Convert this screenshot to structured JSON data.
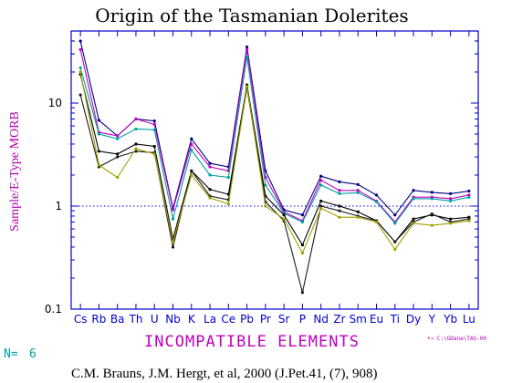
{
  "title": "Origin of the Tasmanian Dolerites",
  "ylabel": "Sample/E-Type MORB",
  "xlabel": "INCOMPATIBLE ELEMENTS",
  "n_label": "N=",
  "n_value": "6",
  "legend_note": "+→ C:\\GDana\\TAS-00",
  "citation": "C.M. Brauns, J.M. Hergt, et al, 2000 (J.Pet.41, (7), 908)",
  "colors": {
    "axis": "#0000cc",
    "title": "#000000",
    "ylabel": "#b000b0",
    "xlabel": "#c000c0",
    "n_label": "#00a0a0",
    "reference_line": "#0000ff"
  },
  "chart_data": {
    "type": "line",
    "yscale": "log",
    "ylim": [
      0.1,
      50
    ],
    "yticks": [
      {
        "value": 0.1,
        "label": "0.1"
      },
      {
        "value": 1,
        "label": "1"
      },
      {
        "value": 10,
        "label": "10"
      }
    ],
    "reference_value": 1,
    "categories": [
      "Cs",
      "Rb",
      "Ba",
      "Th",
      "U",
      "Nb",
      "K",
      "La",
      "Ce",
      "Pb",
      "Pr",
      "Sr",
      "P",
      "Nd",
      "Zr",
      "Sm",
      "Eu",
      "Ti",
      "Dy",
      "Y",
      "Yb",
      "Lu"
    ],
    "series": [
      {
        "color": "#000080",
        "values": [
          40,
          6.8,
          4.8,
          7.0,
          6.7,
          0.95,
          4.5,
          2.6,
          2.4,
          35,
          2.2,
          0.92,
          0.82,
          1.95,
          1.72,
          1.62,
          1.28,
          0.82,
          1.42,
          1.36,
          1.32,
          1.4
        ]
      },
      {
        "color": "#c000c0",
        "values": [
          33,
          5.2,
          4.8,
          7.0,
          6.2,
          0.92,
          4.0,
          2.4,
          2.2,
          33,
          1.9,
          0.88,
          0.72,
          1.78,
          1.42,
          1.42,
          1.12,
          0.7,
          1.22,
          1.22,
          1.18,
          1.28
        ]
      },
      {
        "color": "#00a0a0",
        "values": [
          22,
          5.0,
          4.5,
          5.6,
          5.5,
          0.75,
          3.5,
          2.0,
          1.9,
          28,
          1.6,
          0.85,
          0.7,
          1.6,
          1.32,
          1.35,
          1.1,
          0.68,
          1.18,
          1.18,
          1.12,
          1.22
        ]
      },
      {
        "color": "#000000",
        "values": [
          19,
          3.4,
          3.2,
          4.0,
          3.8,
          0.48,
          2.2,
          1.45,
          1.3,
          15,
          1.25,
          0.82,
          0.42,
          1.12,
          1.0,
          0.88,
          0.72,
          0.45,
          0.75,
          0.82,
          0.75,
          0.78
        ]
      },
      {
        "color": "#1a1a1a",
        "values": [
          12,
          2.4,
          3.0,
          3.4,
          3.3,
          0.4,
          2.2,
          1.25,
          1.15,
          14,
          1.1,
          0.72,
          0.145,
          1.0,
          0.9,
          0.8,
          0.72,
          0.45,
          0.7,
          0.84,
          0.7,
          0.75
        ]
      },
      {
        "color": "#a0a000",
        "values": [
          20,
          2.5,
          1.9,
          3.6,
          3.2,
          0.45,
          2.0,
          1.2,
          1.05,
          14.5,
          1.0,
          0.75,
          0.35,
          0.95,
          0.78,
          0.78,
          0.7,
          0.38,
          0.68,
          0.65,
          0.68,
          0.72
        ]
      }
    ]
  }
}
